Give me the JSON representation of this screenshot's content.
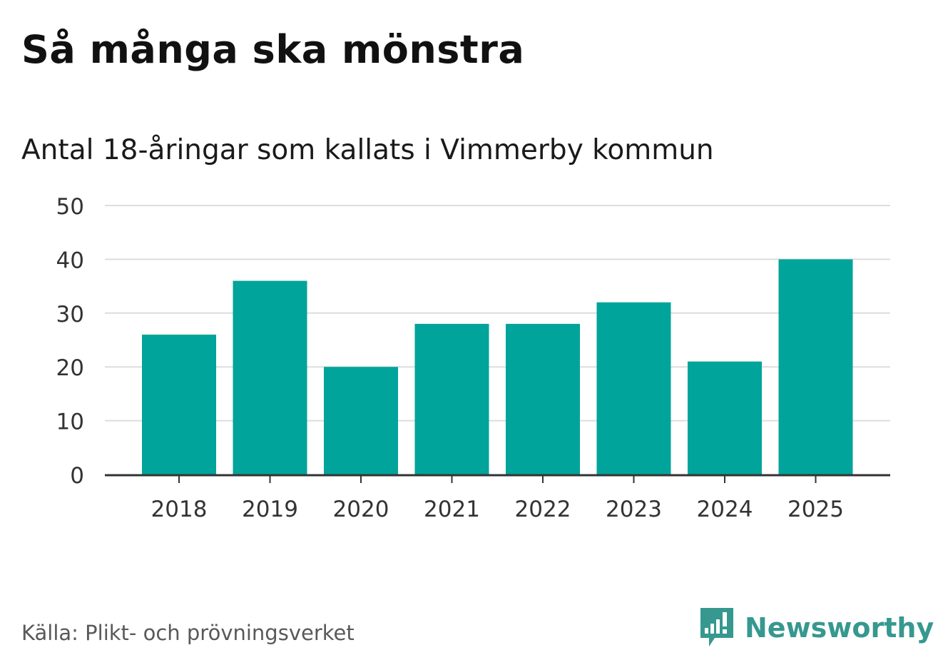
{
  "header": {
    "title": "Så många ska mönstra",
    "subtitle": "Antal 18-åringar som kallats i Vimmerby kommun"
  },
  "footer": {
    "source": "Källa: Plikt- och prövningsverket",
    "brand": "Newsworthy"
  },
  "colors": {
    "bar": "#00a49a",
    "grid": "#dddddd",
    "axis": "#333333",
    "brand": "#36988f"
  },
  "chart_data": {
    "type": "bar",
    "categories": [
      "2018",
      "2019",
      "2020",
      "2021",
      "2022",
      "2023",
      "2024",
      "2025"
    ],
    "values": [
      26,
      36,
      20,
      28,
      28,
      32,
      21,
      40
    ],
    "yticks": [
      0,
      10,
      20,
      30,
      40,
      50
    ],
    "ylim": [
      0,
      50
    ],
    "grid": true,
    "title": "Så många ska mönstra",
    "subtitle": "Antal 18-åringar som kallats i Vimmerby kommun"
  }
}
